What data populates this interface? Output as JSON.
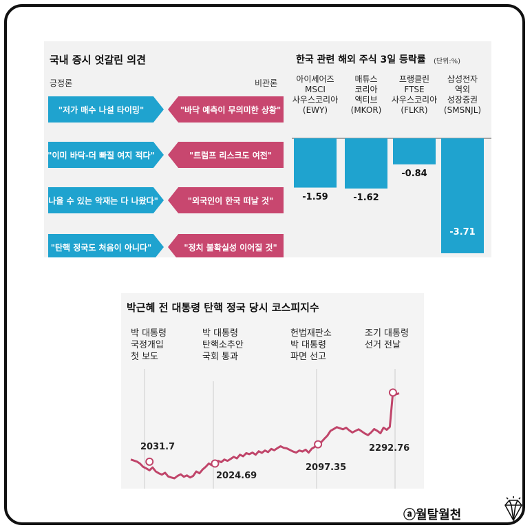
{
  "opinions": {
    "title": "국내 증시 엇갈린 의견",
    "left_label": "긍정론",
    "right_label": "비관론",
    "positive": [
      "\"저가 매수 나설 타이밍\"",
      "\"이미 바닥-더 빠질 여지 적다\"",
      "\"나올 수 있는 악재는 다 나왔다\"",
      "\"탄핵 정국도 처음이 아니다\""
    ],
    "negative": [
      "\"바닥 예측이 무의미한 상황\"",
      "\"트럼프 리스크도 여전\"",
      "\"외국인이 한국 떠날 것\"",
      "\"정치 불확실성 이어질 것\""
    ],
    "colors": {
      "positive": "#1fa3cf",
      "negative": "#c8476f"
    }
  },
  "chart_data": [
    {
      "type": "bar",
      "title": "한국 관련 해외 주식 3일 등락률",
      "unit": "(단위:%)",
      "categories": [
        "아이셰어즈\nMSCI\n사우스코리아\n(EWY)",
        "매튜스\n코리아\n액티브\n(MKOR)",
        "프랭클린\nFTSE\n사우스코리아\n(FLKR)",
        "삼성전자\n역외\n성장증권\n(SMSNJL)"
      ],
      "values": [
        -1.59,
        -1.62,
        -0.84,
        -3.71
      ],
      "value_labels": [
        "-1.59",
        "-1.62",
        "-0.84",
        "-3.71"
      ],
      "ylim": [
        -4.2,
        0
      ],
      "color": "#1fa3cf"
    },
    {
      "type": "line",
      "title": "박근혜 전 대통령 탄핵 정국 당시 코스피지수",
      "color": "#c0456a",
      "events": [
        "박 대통령\n국정개입\n첫 보도",
        "박 대통령\n탄핵소추안\n국회 통과",
        "헌법재판소\n박 대통령\n파면 선고",
        "조기 대통령\n선거 전날"
      ],
      "annotations": [
        "2031.7",
        "2024.69",
        "2097.35",
        "2292.76"
      ],
      "annotation_points": [
        {
          "label": "2031.7",
          "x": 6,
          "y": 2031.7
        },
        {
          "label": "2024.69",
          "x": 27,
          "y": 2024.69
        },
        {
          "label": "2097.35",
          "x": 60,
          "y": 2097.35
        },
        {
          "label": "2292.76",
          "x": 84,
          "y": 2292.76
        }
      ],
      "ylim": [
        1930,
        2330
      ],
      "values": [
        2040,
        2036,
        2031.7,
        2024,
        2012,
        2006,
        1999,
        2010,
        1995,
        1988,
        1983,
        1990,
        1976,
        1972,
        1969,
        1978,
        1984,
        1975,
        1980,
        1972,
        1978,
        1995,
        1988,
        2002,
        2012,
        2024.69,
        2018,
        2026,
        2035,
        2030,
        2040,
        2035,
        2042,
        2050,
        2044,
        2058,
        2052,
        2064,
        2060,
        2066,
        2058,
        2071,
        2065,
        2074,
        2068,
        2080,
        2075,
        2083,
        2090,
        2084,
        2082,
        2076,
        2070,
        2066,
        2074,
        2070,
        2077,
        2066,
        2081,
        2088,
        2097.35,
        2105,
        2118,
        2130,
        2148,
        2155,
        2162,
        2158,
        2154,
        2160,
        2150,
        2142,
        2148,
        2154,
        2146,
        2138,
        2132,
        2142,
        2155,
        2148,
        2139,
        2160,
        2152,
        2163,
        2292.76,
        2286,
        2290
      ],
      "line_width_note": ""
    }
  ],
  "brand": "ⓐ월탈월천",
  "brand_icon": "diamond-icon"
}
